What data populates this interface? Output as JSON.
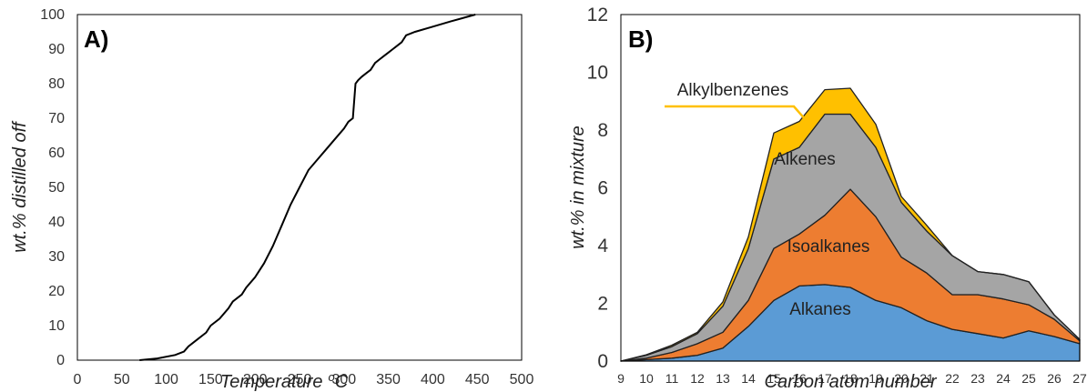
{
  "chart_data": [
    {
      "type": "line",
      "panel_label": "A)",
      "xlabel": "Temperature",
      "xlabel_unit": "oC",
      "ylabel": "wt.% distilled off",
      "xlim": [
        0,
        500
      ],
      "ylim": [
        0,
        100
      ],
      "x_ticks": [
        0,
        50,
        100,
        150,
        200,
        250,
        300,
        350,
        400,
        450,
        500
      ],
      "y_ticks": [
        0,
        10,
        20,
        30,
        40,
        50,
        60,
        70,
        80,
        90,
        100
      ],
      "grid": false,
      "series": [
        {
          "color": "#000000",
          "x": [
            70,
            90,
            110,
            120,
            125,
            135,
            145,
            150,
            160,
            170,
            175,
            185,
            190,
            200,
            210,
            220,
            230,
            240,
            250,
            260,
            270,
            280,
            290,
            300,
            305,
            310,
            313,
            316,
            320,
            325,
            330,
            335,
            340,
            345,
            350,
            355,
            360,
            365,
            370,
            380,
            400,
            420,
            448
          ],
          "y": [
            0,
            0.5,
            1.5,
            2.5,
            4,
            6,
            8,
            10,
            12,
            15,
            17,
            19,
            21,
            24,
            28,
            33,
            39,
            45,
            50,
            55,
            58,
            61,
            64,
            67,
            69,
            70,
            80,
            81,
            82,
            83,
            84,
            86,
            87,
            88,
            89,
            90,
            91,
            92,
            94,
            95,
            96.5,
            98,
            100
          ]
        }
      ]
    },
    {
      "type": "area",
      "stacked": true,
      "panel_label": "B)",
      "xlabel": "Carbon atom number",
      "ylabel": "wt.% in mixture",
      "x": [
        9,
        10,
        11,
        12,
        13,
        14,
        15,
        16,
        17,
        18,
        19,
        20,
        21,
        22,
        23,
        24,
        25,
        26,
        27
      ],
      "xlim": [
        9,
        27
      ],
      "ylim": [
        0,
        12
      ],
      "y_ticks": [
        0,
        2,
        4,
        6,
        8,
        10,
        12
      ],
      "grid": false,
      "series": [
        {
          "name": "Alkanes",
          "color": "#5B9BD5",
          "values": [
            0,
            0.05,
            0.1,
            0.2,
            0.45,
            1.2,
            2.1,
            2.6,
            2.65,
            2.55,
            2.1,
            1.85,
            1.4,
            1.1,
            0.95,
            0.8,
            1.05,
            0.85,
            0.6
          ]
        },
        {
          "name": "Isoalkanes",
          "color": "#ED7D31",
          "values": [
            0,
            0.05,
            0.2,
            0.4,
            0.55,
            0.9,
            1.8,
            1.8,
            2.4,
            3.4,
            2.9,
            1.75,
            1.65,
            1.2,
            1.35,
            1.35,
            0.9,
            0.6,
            0.1
          ]
        },
        {
          "name": "Alkenes",
          "color": "#A5A5A5",
          "values": [
            0,
            0.1,
            0.2,
            0.35,
            0.9,
            1.8,
            3.1,
            3.0,
            3.5,
            2.6,
            2.4,
            1.9,
            1.45,
            1.35,
            0.8,
            0.85,
            0.8,
            0.15,
            0.05
          ]
        },
        {
          "name": "Alkylbenzenes",
          "color": "#FFC000",
          "values": [
            0,
            0.02,
            0.05,
            0.05,
            0.15,
            0.4,
            0.9,
            0.9,
            0.85,
            0.9,
            0.8,
            0.2,
            0.2,
            0,
            0,
            0,
            0,
            0,
            0
          ]
        }
      ]
    }
  ]
}
